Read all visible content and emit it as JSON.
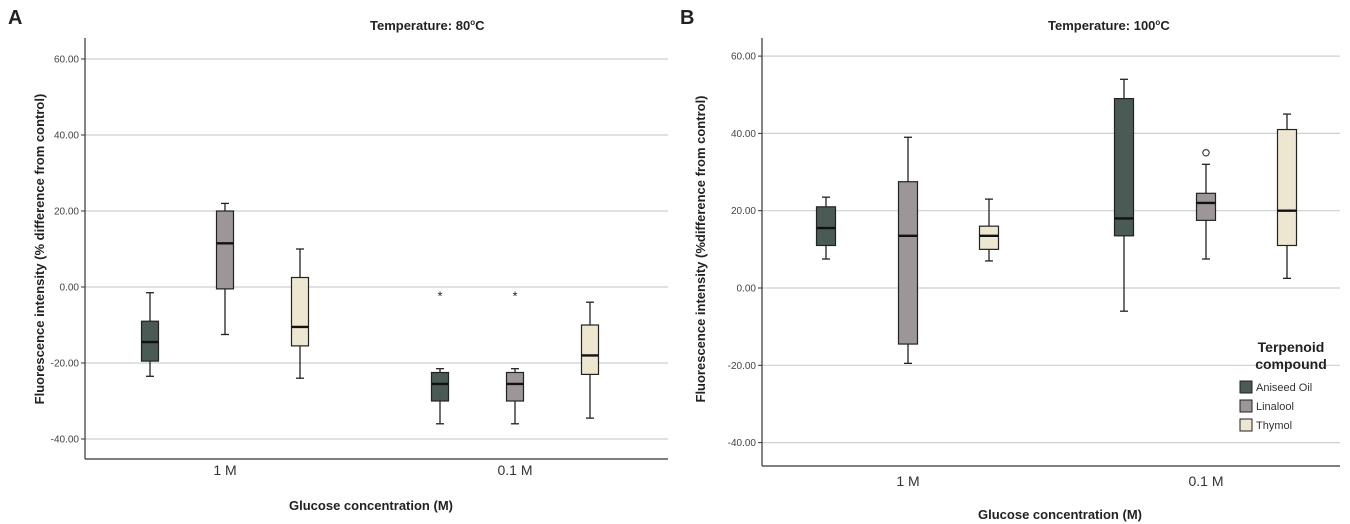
{
  "chart_data": [
    {
      "type": "box",
      "panel": "A",
      "title": "Temperature: 80°C",
      "title_main": "Temperature: 80",
      "title_unit": "C",
      "xlabel": "Glucose concentration (M)",
      "ylabel": "Fluorescence intensity (% difference from control)",
      "ylim": [
        -45,
        66
      ],
      "yticks": [
        60,
        40,
        20,
        0,
        -20,
        -40
      ],
      "ytick_labels": [
        "60.00",
        "40.00",
        "20.00",
        "0.00",
        "-20.00",
        "-40.00"
      ],
      "grid": true,
      "categories": [
        "1 M",
        "0.1 M"
      ],
      "series": [
        {
          "name": "Aniseed Oil",
          "color": "#4a5a55",
          "boxes": [
            {
              "category": "1 M",
              "min": -23.5,
              "q1": -19.5,
              "median": -14.5,
              "q3": -9,
              "max": -1.5
            },
            {
              "category": "0.1 M",
              "min": -36,
              "q1": -30,
              "median": -25.5,
              "q3": -22.5,
              "max": -21.5,
              "outliers": [
                {
                  "value": -1.5,
                  "marker": "*"
                }
              ]
            }
          ]
        },
        {
          "name": "Linalool",
          "color": "#9c9698",
          "boxes": [
            {
              "category": "1 M",
              "min": -12.5,
              "q1": -0.5,
              "median": 11.5,
              "q3": 20,
              "max": 22
            },
            {
              "category": "0.1 M",
              "min": -36,
              "q1": -30,
              "median": -25.5,
              "q3": -22.5,
              "max": -21.5,
              "outliers": [
                {
                  "value": -1.5,
                  "marker": "*"
                }
              ]
            }
          ]
        },
        {
          "name": "Thymol",
          "color": "#ede6d1",
          "boxes": [
            {
              "category": "1 M",
              "min": -24,
              "q1": -15.5,
              "median": -10.5,
              "q3": 2.5,
              "max": 10
            },
            {
              "category": "0.1 M",
              "min": -34.5,
              "q1": -23,
              "median": -18,
              "q3": -10,
              "max": -4
            }
          ]
        }
      ]
    },
    {
      "type": "box",
      "panel": "B",
      "title": "Temperature: 100°C",
      "title_main": "Temperature: 100",
      "title_unit": "C",
      "xlabel": "Glucose concentration (M)",
      "ylabel": "Fluorescence intensity (%difference from control)",
      "ylim": [
        -46,
        66
      ],
      "yticks": [
        60,
        40,
        20,
        0,
        -20,
        -40
      ],
      "ytick_labels": [
        "60.00",
        "40.00",
        "20.00",
        "0.00",
        "-20.00",
        "-40.00"
      ],
      "grid": true,
      "categories": [
        "1 M",
        "0.1 M"
      ],
      "legend": {
        "title_line1": "Terpenoid",
        "title_line2": "compound",
        "position": "bottom-right"
      },
      "series": [
        {
          "name": "Aniseed Oil",
          "color": "#4a5a55",
          "boxes": [
            {
              "category": "1 M",
              "min": 7.5,
              "q1": 11,
              "median": 15.5,
              "q3": 21,
              "max": 23.5
            },
            {
              "category": "0.1 M",
              "min": -6,
              "q1": 13.5,
              "median": 18,
              "q3": 49,
              "max": 54
            }
          ]
        },
        {
          "name": "Linalool",
          "color": "#9c9698",
          "boxes": [
            {
              "category": "1 M",
              "min": -19.5,
              "q1": -14.5,
              "median": 13.5,
              "q3": 27.5,
              "max": 39
            },
            {
              "category": "0.1 M",
              "min": 7.5,
              "q1": 17.5,
              "median": 22,
              "q3": 24.5,
              "max": 32,
              "outliers": [
                {
                  "value": 35,
                  "marker": "o"
                }
              ]
            }
          ]
        },
        {
          "name": "Thymol",
          "color": "#ede6d1",
          "boxes": [
            {
              "category": "1 M",
              "min": 7,
              "q1": 10,
              "median": 13.5,
              "q3": 16,
              "max": 23
            },
            {
              "category": "0.1 M",
              "min": 2.5,
              "q1": 11,
              "median": 20,
              "q3": 41,
              "max": 45
            }
          ]
        }
      ]
    }
  ]
}
